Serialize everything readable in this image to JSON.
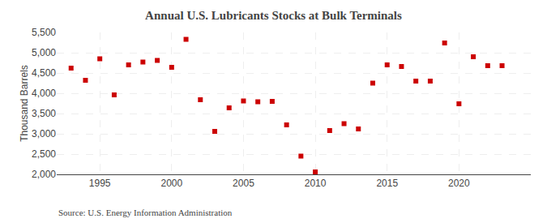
{
  "chart_data": {
    "type": "scatter",
    "title": "Annual U.S. Lubricants Stocks at Bulk Terminals",
    "ylabel": "Thousand Barrels",
    "annotations": [
      "Source: U.S. Energy Information Administration"
    ],
    "x": [
      1993,
      1994,
      1995,
      1996,
      1997,
      1998,
      1999,
      2000,
      2001,
      2002,
      2003,
      2004,
      2005,
      2006,
      2007,
      2008,
      2009,
      2010,
      2011,
      2012,
      2013,
      2014,
      2015,
      2016,
      2017,
      2018,
      2019,
      2020,
      2021,
      2022,
      2023
    ],
    "values": [
      4620,
      4320,
      4850,
      3960,
      4700,
      4770,
      4810,
      4640,
      5330,
      3840,
      3060,
      3640,
      3810,
      3790,
      3800,
      3220,
      2450,
      2060,
      3080,
      3250,
      3120,
      4250,
      4700,
      4660,
      4300,
      4300,
      5240,
      3740,
      4900,
      4680,
      4680
    ],
    "color": "#cc0000",
    "marker": "square",
    "xlim": [
      1992,
      2025
    ],
    "xticks": [
      1995,
      2000,
      2005,
      2010,
      2015,
      2020
    ],
    "ylim": [
      2000,
      5500
    ],
    "yticks": [
      {
        "value": 2000,
        "label": "2,000"
      },
      {
        "value": 2500,
        "label": "2,500"
      },
      {
        "value": 3000,
        "label": "3,000"
      },
      {
        "value": 3500,
        "label": "3,500"
      },
      {
        "value": 4000,
        "label": "4,000"
      },
      {
        "value": 4500,
        "label": "4,500"
      },
      {
        "value": 5000,
        "label": "5,000"
      },
      {
        "value": 5500,
        "label": "5,500"
      }
    ],
    "grid": true
  }
}
